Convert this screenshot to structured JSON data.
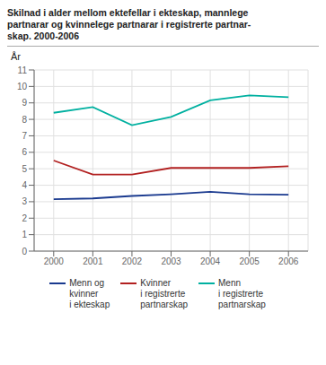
{
  "chart_data": {
    "type": "line",
    "title": "Skilnad i alder mellom ektefellar i ekteskap, mannlege\npartnarar og kvinnelege partnarar i registrerte partnar-\nskap. 2000-2006",
    "ylabel": "År",
    "x": [
      2000,
      2001,
      2002,
      2003,
      2004,
      2005,
      2006
    ],
    "series": [
      {
        "name": "Menn og\nkvinner\ni ekteskap",
        "color": "#1a3a8f",
        "values": [
          3.15,
          3.2,
          3.35,
          3.45,
          3.6,
          3.45,
          3.42
        ]
      },
      {
        "name": "Kvinner\ni registrerte\npartnarskap",
        "color": "#b22020",
        "values": [
          5.5,
          4.65,
          4.65,
          5.05,
          5.05,
          5.05,
          5.15
        ]
      },
      {
        "name": "Menn\ni registrerte\npartnarskap",
        "color": "#00b0a0",
        "values": [
          8.4,
          8.75,
          7.65,
          8.15,
          9.15,
          9.45,
          9.35
        ]
      }
    ],
    "xlim": [
      1999.5,
      2006.5
    ],
    "ylim": [
      0,
      11
    ],
    "xticks": [
      2000,
      2001,
      2002,
      2003,
      2004,
      2005,
      2006
    ],
    "yticks": [
      0,
      1,
      2,
      3,
      4,
      5,
      6,
      7,
      8,
      9,
      10,
      11
    ],
    "grid": true,
    "legend": "bottom"
  }
}
